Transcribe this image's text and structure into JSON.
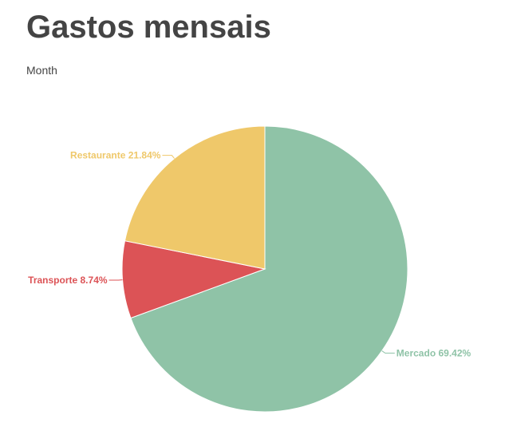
{
  "header": {
    "title": "Gastos mensais",
    "subtitle": "Month"
  },
  "chart_data": {
    "type": "pie",
    "title": "Gastos mensais",
    "subtitle": "Month",
    "slices": [
      {
        "label": "Mercado",
        "value": 69.42,
        "display": "Mercado 69.42%",
        "color": "#8fc3a7"
      },
      {
        "label": "Transporte",
        "value": 8.74,
        "display": "Transporte 8.74%",
        "color": "#dc5356"
      },
      {
        "label": "Restaurante",
        "value": 21.84,
        "display": "Restaurante 21.84%",
        "color": "#efc86a"
      }
    ]
  }
}
